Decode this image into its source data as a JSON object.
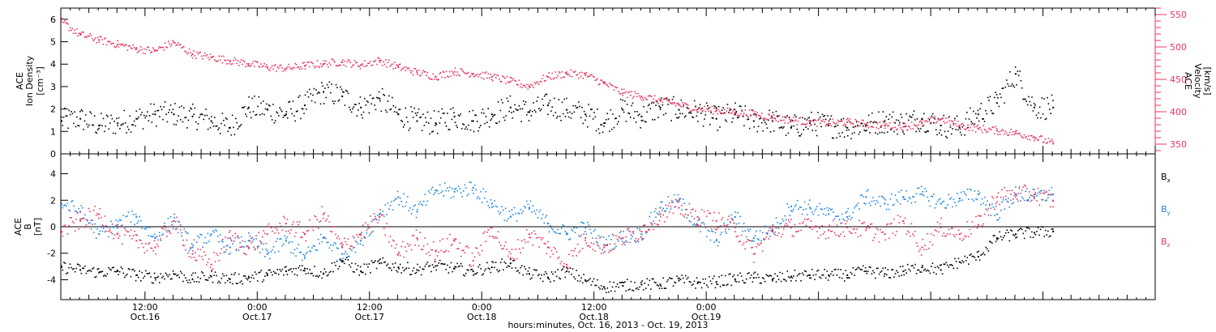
{
  "chart_data": [
    {
      "type": "scatter",
      "panel": "top",
      "ylabel_lines": [
        "ACE",
        "Ion Density",
        "[cm⁻³]"
      ],
      "y2label_lines": [
        "ACE",
        "Velocity",
        "[km/s]"
      ],
      "ylim": [
        0,
        6.5
      ],
      "y_ticks": [
        0,
        1,
        2,
        3,
        4,
        5,
        6
      ],
      "y2lim": [
        335,
        560
      ],
      "y2_ticks": [
        350,
        400,
        450,
        500,
        550
      ],
      "grid": false,
      "series": [
        {
          "key": "density",
          "axis": "left",
          "color": "#000000",
          "x": [
            0,
            2,
            4,
            6,
            8,
            10,
            12,
            14,
            16,
            18,
            20,
            22,
            24,
            26,
            28,
            30,
            32,
            34,
            36,
            38,
            40,
            42,
            44,
            46,
            48,
            50,
            52,
            54,
            56,
            58,
            60,
            62,
            64,
            66,
            68,
            70,
            72,
            74,
            76,
            78,
            80,
            82,
            84,
            86,
            88,
            90,
            92,
            94,
            96,
            98,
            100,
            102,
            104,
            106
          ],
          "values": [
            1.5,
            1.6,
            1.3,
            1.4,
            1.6,
            1.8,
            1.8,
            1.7,
            1.5,
            1.2,
            2.1,
            2.0,
            1.8,
            2.2,
            2.8,
            2.6,
            2.1,
            2.5,
            1.8,
            1.5,
            1.4,
            1.7,
            1.5,
            1.8,
            2.1,
            1.9,
            2.2,
            2.0,
            1.8,
            1.4,
            2.0,
            1.7,
            2.1,
            2.0,
            1.9,
            1.6,
            1.8,
            1.5,
            1.5,
            1.2,
            1.4,
            1.3,
            1.2,
            1.3,
            1.5,
            1.4,
            1.6,
            1.3,
            1.2,
            1.8,
            2.3,
            3.6,
            2.1,
            2.1
          ]
        },
        {
          "key": "velocity",
          "axis": "right",
          "color": "#e8375f",
          "x": [
            0,
            2,
            4,
            6,
            8,
            10,
            12,
            14,
            16,
            18,
            20,
            22,
            24,
            26,
            28,
            30,
            32,
            34,
            36,
            38,
            40,
            42,
            44,
            46,
            48,
            50,
            52,
            54,
            56,
            58,
            60,
            62,
            64,
            66,
            68,
            70,
            72,
            74,
            76,
            78,
            80,
            82,
            84,
            86,
            88,
            90,
            92,
            94,
            96,
            98,
            100,
            102,
            104,
            106
          ],
          "values": [
            540,
            520,
            512,
            505,
            498,
            495,
            508,
            490,
            485,
            480,
            475,
            470,
            468,
            472,
            475,
            478,
            473,
            480,
            470,
            462,
            455,
            463,
            460,
            455,
            448,
            440,
            455,
            460,
            458,
            445,
            430,
            425,
            418,
            412,
            405,
            403,
            400,
            398,
            392,
            388,
            385,
            383,
            385,
            382,
            380,
            378,
            383,
            390,
            380,
            375,
            372,
            368,
            362,
            352
          ]
        }
      ]
    },
    {
      "type": "scatter",
      "panel": "bottom",
      "ylabel_lines": [
        "ACE",
        "B",
        "[nT]"
      ],
      "ylim": [
        -5.5,
        5.5
      ],
      "y_ticks": [
        -4,
        -2,
        0,
        2,
        4
      ],
      "zero_line": true,
      "grid": false,
      "legend": [
        "Bx",
        "By",
        "Bz"
      ],
      "legend_position": "right",
      "series": [
        {
          "key": "bx",
          "name": "Bx",
          "color": "#000000",
          "x": [
            0,
            2,
            4,
            6,
            8,
            10,
            12,
            14,
            16,
            18,
            20,
            22,
            24,
            26,
            28,
            30,
            32,
            34,
            36,
            38,
            40,
            42,
            44,
            46,
            48,
            50,
            52,
            54,
            56,
            58,
            60,
            62,
            64,
            66,
            68,
            70,
            72,
            74,
            76,
            78,
            80,
            82,
            84,
            86,
            88,
            90,
            92,
            94,
            96,
            98,
            100,
            102,
            104,
            106
          ],
          "values": [
            -3,
            -3.2,
            -3.4,
            -3.3,
            -3.6,
            -3.8,
            -3.5,
            -3.9,
            -3.7,
            -3.9,
            -3.8,
            -3.6,
            -3.3,
            -3.1,
            -3.5,
            -2.5,
            -3.3,
            -2.7,
            -3.0,
            -3.2,
            -2.9,
            -3.1,
            -3.3,
            -3.0,
            -2.7,
            -3.5,
            -3.8,
            -3.3,
            -4.0,
            -4.5,
            -4.4,
            -4.3,
            -4.3,
            -4.0,
            -4.2,
            -4.1,
            -3.9,
            -3.8,
            -3.9,
            -3.7,
            -3.6,
            -3.6,
            -3.6,
            -3.3,
            -3.5,
            -3.3,
            -3.0,
            -3.2,
            -2.6,
            -2.2,
            -0.8,
            -0.5,
            -0.4,
            -0.3
          ]
        },
        {
          "key": "by",
          "name": "By",
          "color": "#1f84dd",
          "x": [
            0,
            2,
            4,
            6,
            8,
            10,
            12,
            14,
            16,
            18,
            20,
            22,
            24,
            26,
            28,
            30,
            32,
            34,
            36,
            38,
            40,
            42,
            44,
            46,
            48,
            50,
            52,
            54,
            56,
            58,
            60,
            62,
            64,
            66,
            68,
            70,
            72,
            74,
            76,
            78,
            80,
            82,
            84,
            86,
            88,
            90,
            92,
            94,
            96,
            98,
            100,
            102,
            104,
            106
          ],
          "values": [
            1.8,
            1.2,
            -0.5,
            0.2,
            0.8,
            -0.8,
            0.5,
            -1.5,
            -0.5,
            -1.5,
            -1.0,
            -2.0,
            -1.0,
            -2.3,
            -0.8,
            -2.0,
            -1.0,
            1.0,
            2.3,
            1.2,
            2.8,
            2.7,
            3.0,
            1.8,
            0.8,
            1.5,
            0.3,
            -0.5,
            0.0,
            -1.3,
            -0.8,
            -0.5,
            1.5,
            2.0,
            0.2,
            -1.0,
            0.8,
            -0.8,
            -0.2,
            1.6,
            1.5,
            1.0,
            0.8,
            2.3,
            1.8,
            2.3,
            2.5,
            1.8,
            2.2,
            2.5,
            1.0,
            2.5,
            2.3,
            2.5
          ]
        },
        {
          "key": "bz",
          "name": "Bz",
          "color": "#e8375f",
          "x": [
            0,
            2,
            4,
            6,
            8,
            10,
            12,
            14,
            16,
            18,
            20,
            22,
            24,
            26,
            28,
            30,
            32,
            34,
            36,
            38,
            40,
            42,
            44,
            46,
            48,
            50,
            52,
            54,
            56,
            58,
            60,
            62,
            64,
            66,
            68,
            70,
            72,
            74,
            76,
            78,
            80,
            82,
            84,
            86,
            88,
            90,
            92,
            94,
            96,
            98,
            100,
            102,
            104,
            106
          ],
          "values": [
            -0.3,
            0.5,
            1.0,
            -0.5,
            -1.0,
            -1.5,
            0.5,
            -2.0,
            -2.8,
            -0.8,
            -1.5,
            -0.5,
            0.3,
            -0.5,
            1.0,
            -1.5,
            -0.5,
            0.8,
            -2.0,
            -0.8,
            -1.8,
            -1.0,
            -2.5,
            0.0,
            -2.3,
            -0.5,
            -1.5,
            -2.8,
            -0.8,
            -1.5,
            -0.8,
            -0.3,
            1.0,
            1.5,
            0.8,
            0.5,
            0.0,
            -2.0,
            -0.3,
            0.0,
            0.0,
            -0.2,
            0.0,
            -0.2,
            -0.5,
            0.5,
            -1.5,
            0.0,
            -0.5,
            0.2,
            2.3,
            2.5,
            2.5,
            2.0
          ]
        }
      ]
    }
  ],
  "x_axis": {
    "xlim": [
      0,
      117
    ],
    "major_ticks": [
      {
        "x": 9,
        "time": "12:00",
        "date": "Oct.16"
      },
      {
        "x": 21,
        "time": "0:00",
        "date": "Oct.17"
      },
      {
        "x": 33,
        "time": "12:00",
        "date": "Oct.17"
      },
      {
        "x": 45,
        "time": "0:00",
        "date": "Oct.18"
      },
      {
        "x": 57,
        "time": "12:00",
        "date": "Oct.18"
      },
      {
        "x": 69,
        "time": "0:00",
        "date": "Oct.19"
      }
    ],
    "title": "hours:minutes, Oct. 16, 2013 - Oct. 19, 2013"
  },
  "colors": {
    "density": "#000000",
    "velocity": "#e8375f",
    "bx": "#000000",
    "by": "#1f84dd",
    "bz": "#e8375f",
    "axis": "#000000"
  }
}
